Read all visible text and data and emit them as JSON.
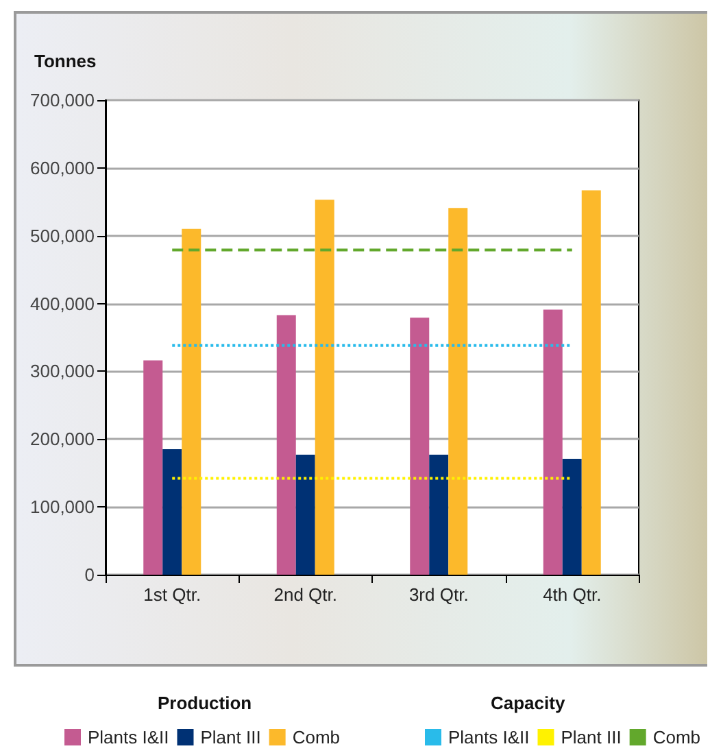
{
  "chart_data": {
    "type": "bar",
    "ylabel": "Tonnes",
    "categories": [
      "1st Qtr.",
      "2nd Qtr.",
      "3rd Qtr.",
      "4th Qtr."
    ],
    "series": [
      {
        "name": "Plants I&II",
        "color": "#c45b91",
        "values": [
          316000,
          383000,
          379000,
          391000
        ]
      },
      {
        "name": "Plant III",
        "color": "#003174",
        "values": [
          185000,
          177000,
          177000,
          171000
        ]
      },
      {
        "name": "Comb",
        "color": "#fcb92b",
        "values": [
          510000,
          553000,
          541000,
          567000
        ]
      },
      {
        "name": "Plants I&II",
        "type": "line",
        "line_style": "dotted",
        "color": "#29bbea",
        "values": [
          338000,
          338000,
          338000,
          338000
        ]
      },
      {
        "name": "Plant III",
        "type": "line",
        "line_style": "dotted",
        "color": "#fff200",
        "values": [
          142000,
          142000,
          142000,
          142000
        ]
      },
      {
        "name": "Comb",
        "type": "line",
        "line_style": "dashed",
        "color": "#62a82c",
        "values": [
          479000,
          479000,
          479000,
          479000
        ]
      }
    ],
    "annotations": [
      "Production",
      "Capacity"
    ],
    "ylim": [
      0,
      700000
    ],
    "yticks": [
      0,
      {
        "value": 100000,
        "label": "100,000"
      },
      {
        "value": 200000,
        "label": "200,000"
      },
      {
        "value": 300000,
        "label": "300,000"
      },
      {
        "value": 400000,
        "label": "400,000"
      },
      {
        "value": 500000,
        "label": "500,000"
      },
      {
        "value": 600000,
        "label": "600,000"
      },
      {
        "value": 700000,
        "label": "700,000"
      }
    ],
    "grid": "y",
    "legend": "bottom",
    "marker": "none"
  }
}
